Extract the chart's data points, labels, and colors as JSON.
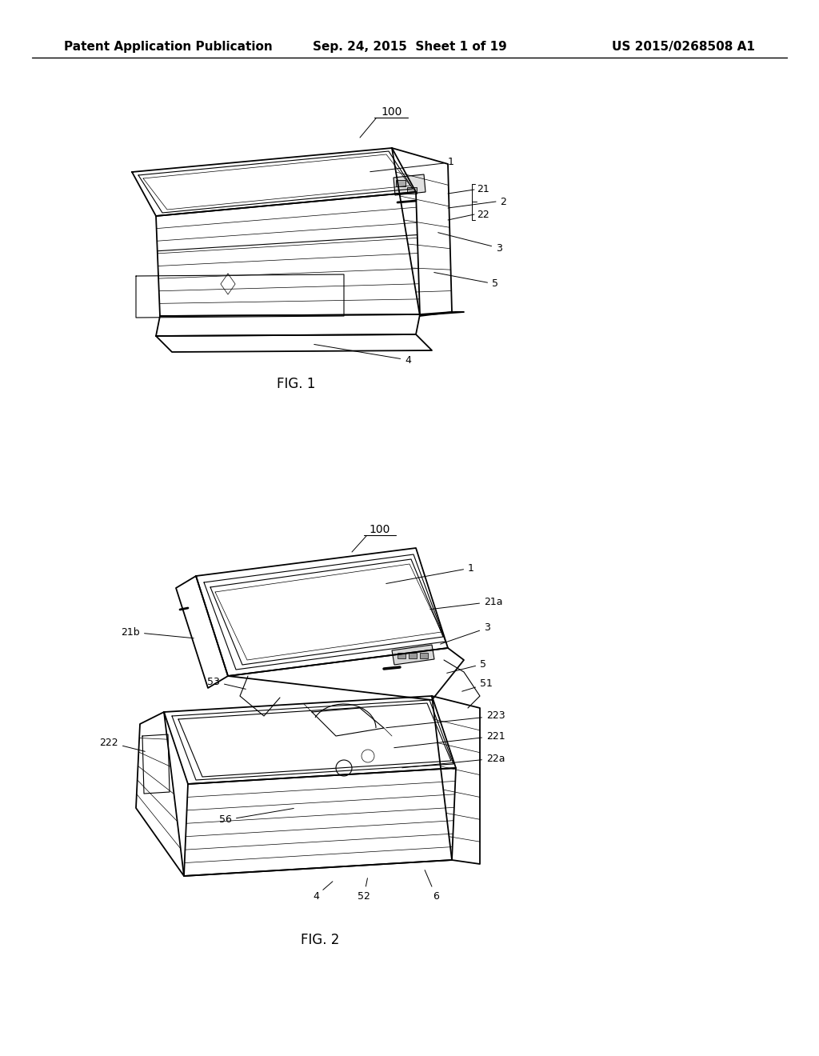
{
  "background_color": "#ffffff",
  "header": {
    "left": "Patent Application Publication",
    "center": "Sep. 24, 2015  Sheet 1 of 19",
    "right": "US 2015/0268508 A1",
    "fontsize": 11
  },
  "fig1_caption": "FIG. 1",
  "fig2_caption": "FIG. 2",
  "fig1_ref": "100",
  "fig2_ref": "100",
  "line_color": "#000000",
  "text_color": "#000000"
}
